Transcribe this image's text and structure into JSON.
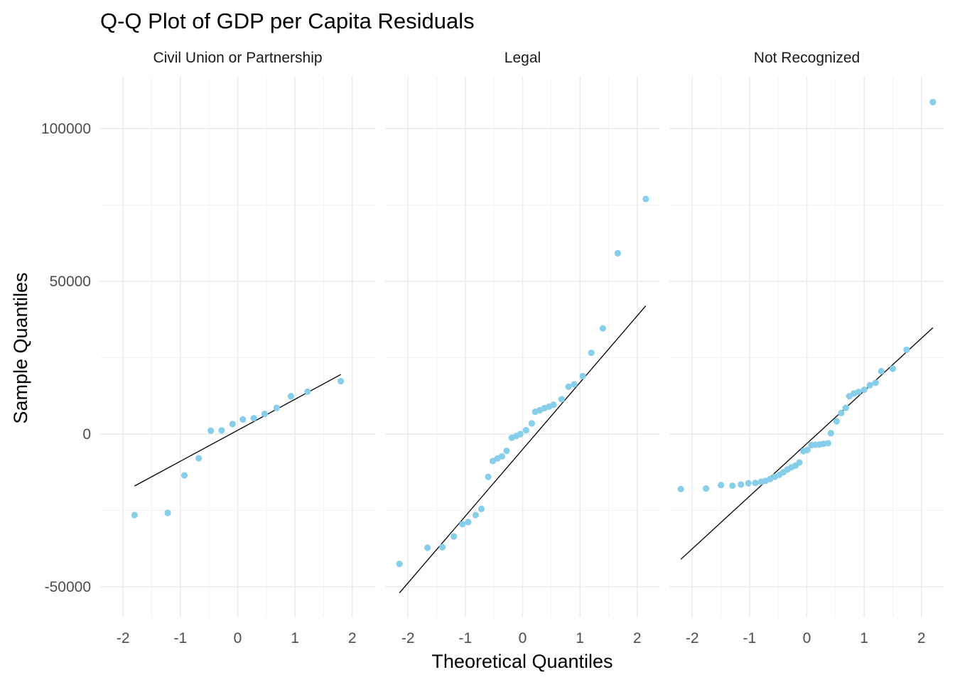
{
  "chart_data": {
    "type": "scatter",
    "title": "Q-Q Plot of GDP per Capita Residuals",
    "xlabel": "Theoretical Quantiles",
    "ylabel": "Sample Quantiles",
    "xlim": [
      -2.4,
      2.4
    ],
    "ylim": [
      -60000,
      117000
    ],
    "x_ticks": [
      -2,
      -1,
      0,
      1,
      2
    ],
    "y_ticks": [
      -50000,
      0,
      50000,
      100000
    ],
    "x_tick_labels": [
      "-2",
      "-1",
      "0",
      "1",
      "2"
    ],
    "y_tick_labels": [
      "-50000",
      "0",
      "50000",
      "100000"
    ],
    "grid": true,
    "point_color": "#87CEEB",
    "line_color": "#000000",
    "panels": [
      {
        "name": "Civil Union or Partnership",
        "line": {
          "x": [
            -1.8,
            1.8
          ],
          "y": [
            -17000,
            19500
          ]
        },
        "points": [
          [
            -1.8,
            -26500
          ],
          [
            -1.22,
            -25800
          ],
          [
            -0.93,
            -13500
          ],
          [
            -0.68,
            -7900
          ],
          [
            -0.47,
            1100
          ],
          [
            -0.28,
            1200
          ],
          [
            -0.09,
            3300
          ],
          [
            0.09,
            4800
          ],
          [
            0.28,
            5200
          ],
          [
            0.47,
            6600
          ],
          [
            0.68,
            8600
          ],
          [
            0.93,
            12400
          ],
          [
            1.22,
            13900
          ],
          [
            1.8,
            17300
          ]
        ]
      },
      {
        "name": "Legal",
        "line": {
          "x": [
            -2.15,
            2.15
          ],
          "y": [
            -52000,
            42000
          ]
        },
        "points": [
          [
            -2.15,
            -42500
          ],
          [
            -1.66,
            -37200
          ],
          [
            -1.4,
            -37000
          ],
          [
            -1.2,
            -33500
          ],
          [
            -1.05,
            -29500
          ],
          [
            -0.95,
            -28800
          ],
          [
            -0.82,
            -26500
          ],
          [
            -0.72,
            -24500
          ],
          [
            -0.6,
            -14000
          ],
          [
            -0.52,
            -8800
          ],
          [
            -0.44,
            -8000
          ],
          [
            -0.36,
            -7300
          ],
          [
            -0.28,
            -5500
          ],
          [
            -0.19,
            -1200
          ],
          [
            -0.11,
            -600
          ],
          [
            -0.04,
            0
          ],
          [
            0.06,
            1300
          ],
          [
            0.16,
            3500
          ],
          [
            0.22,
            7300
          ],
          [
            0.3,
            7800
          ],
          [
            0.38,
            8500
          ],
          [
            0.46,
            9000
          ],
          [
            0.54,
            9600
          ],
          [
            0.68,
            11400
          ],
          [
            0.8,
            15500
          ],
          [
            0.9,
            16300
          ],
          [
            1.05,
            19000
          ],
          [
            1.2,
            26600
          ],
          [
            1.4,
            34600
          ],
          [
            1.66,
            59200
          ],
          [
            2.15,
            77000
          ]
        ]
      },
      {
        "name": "Not Recognized",
        "line": {
          "x": [
            -2.2,
            2.2
          ],
          "y": [
            -41000,
            34800
          ]
        },
        "points": [
          [
            -2.2,
            -18000
          ],
          [
            -1.76,
            -17800
          ],
          [
            -1.5,
            -16700
          ],
          [
            -1.3,
            -16900
          ],
          [
            -1.15,
            -16500
          ],
          [
            -1.02,
            -16100
          ],
          [
            -0.9,
            -16000
          ],
          [
            -0.8,
            -15600
          ],
          [
            -0.72,
            -15300
          ],
          [
            -0.64,
            -14700
          ],
          [
            -0.56,
            -14000
          ],
          [
            -0.48,
            -13300
          ],
          [
            -0.41,
            -12500
          ],
          [
            -0.34,
            -11600
          ],
          [
            -0.27,
            -10900
          ],
          [
            -0.2,
            -10300
          ],
          [
            -0.13,
            -9300
          ],
          [
            -0.06,
            -5600
          ],
          [
            0.01,
            -5200
          ],
          [
            0.08,
            -3600
          ],
          [
            0.15,
            -3500
          ],
          [
            0.22,
            -3400
          ],
          [
            0.29,
            -3200
          ],
          [
            0.37,
            -3000
          ],
          [
            0.42,
            300
          ],
          [
            0.52,
            4200
          ],
          [
            0.6,
            6900
          ],
          [
            0.68,
            8600
          ],
          [
            0.74,
            12400
          ],
          [
            0.82,
            13300
          ],
          [
            0.9,
            13800
          ],
          [
            1.0,
            14500
          ],
          [
            1.1,
            16000
          ],
          [
            1.2,
            16800
          ],
          [
            1.3,
            20600
          ],
          [
            1.5,
            21400
          ],
          [
            1.74,
            27600
          ],
          [
            2.2,
            108700
          ]
        ]
      }
    ]
  }
}
